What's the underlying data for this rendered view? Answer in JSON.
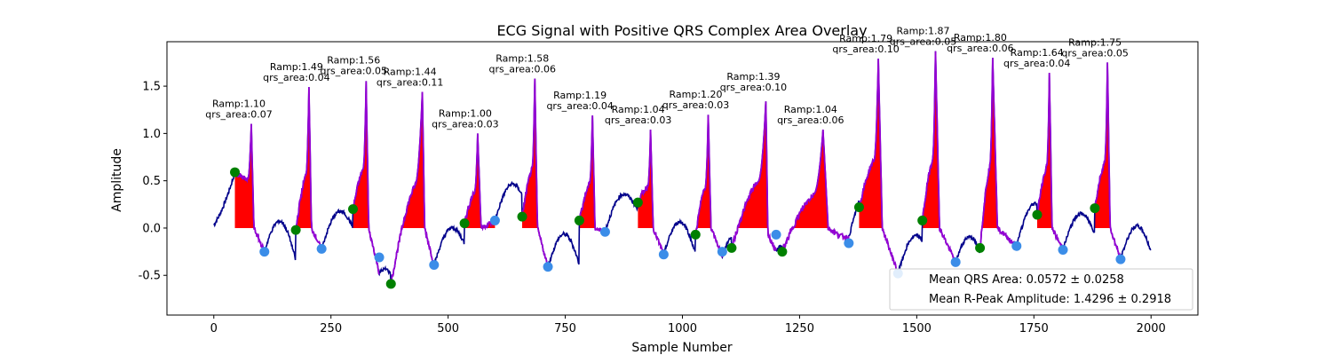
{
  "chart_data": {
    "type": "line",
    "title": "ECG Signal with Positive QRS Complex Area Overlay",
    "xlabel": "Sample Number",
    "ylabel": "Amplitude",
    "xlim": [
      -100,
      2100
    ],
    "ylim": [
      -0.92,
      1.97
    ],
    "xticks": [
      0,
      250,
      500,
      750,
      1000,
      1250,
      1500,
      1750,
      2000
    ],
    "yticks": [
      -0.5,
      0.0,
      0.5,
      1.0,
      1.5
    ],
    "grid": false,
    "colors": {
      "signal": "#00008b",
      "qrs_segment": "#9400d3",
      "qrs_fill": "#ff0000",
      "onset_marker": "#008000",
      "offset_marker": "#3b8de8"
    },
    "beats": [
      {
        "r_x": 80,
        "r_amp": 1.1,
        "qrs_area": "0.07",
        "onset": [
          45,
          0.59
        ],
        "offset": [
          108,
          -0.25
        ],
        "ramp_label": "Ramp:1.10",
        "area_label": "qrs_area:0.07"
      },
      {
        "r_x": 203,
        "r_amp": 1.49,
        "qrs_area": "0.04",
        "onset": [
          175,
          -0.02
        ],
        "offset": [
          230,
          -0.22
        ],
        "ramp_label": "Ramp:1.49",
        "area_label": "qrs_area:0.04"
      },
      {
        "r_x": 325,
        "r_amp": 1.56,
        "qrs_area": "0.05",
        "onset": [
          297,
          0.2
        ],
        "offset": [
          353,
          -0.31
        ],
        "ramp_label": "Ramp:1.56",
        "area_label": "qrs_area:0.05"
      },
      {
        "r_x": 445,
        "r_amp": 1.44,
        "qrs_area": "0.11",
        "onset": [
          378,
          -0.59
        ],
        "offset": [
          470,
          -0.39
        ],
        "ramp_label": "Ramp:1.44",
        "area_label": "qrs_area:0.11"
      },
      {
        "r_x": 563,
        "r_amp": 1.0,
        "qrs_area": "0.03",
        "onset": [
          535,
          0.05
        ],
        "offset": [
          600,
          0.08
        ],
        "ramp_label": "Ramp:1.00",
        "area_label": "qrs_area:0.03"
      },
      {
        "r_x": 685,
        "r_amp": 1.58,
        "qrs_area": "0.06",
        "onset": [
          658,
          0.12
        ],
        "offset": [
          713,
          -0.41
        ],
        "ramp_label": "Ramp:1.58",
        "area_label": "qrs_area:0.06"
      },
      {
        "r_x": 808,
        "r_amp": 1.19,
        "qrs_area": "0.04",
        "onset": [
          780,
          0.08
        ],
        "offset": [
          835,
          -0.04
        ],
        "ramp_label": "Ramp:1.19",
        "area_label": "qrs_area:0.04"
      },
      {
        "r_x": 932,
        "r_amp": 1.04,
        "qrs_area": "0.03",
        "onset": [
          905,
          0.27
        ],
        "offset": [
          960,
          -0.28
        ],
        "ramp_label": "Ramp:1.04",
        "area_label": "qrs_area:0.03"
      },
      {
        "r_x": 1055,
        "r_amp": 1.2,
        "qrs_area": "0.03",
        "onset": [
          1028,
          -0.07
        ],
        "offset": [
          1085,
          -0.25
        ],
        "ramp_label": "Ramp:1.20",
        "area_label": "qrs_area:0.03"
      },
      {
        "r_x": 1178,
        "r_amp": 1.39,
        "qrs_area": "0.10",
        "onset": [
          1105,
          -0.21
        ],
        "offset": [
          1200,
          -0.07
        ],
        "ramp_label": "Ramp:1.39",
        "area_label": "qrs_area:0.10"
      },
      {
        "r_x": 1300,
        "r_amp": 1.04,
        "qrs_area": "0.06",
        "onset": [
          1213,
          -0.25
        ],
        "offset": [
          1355,
          -0.16
        ],
        "ramp_label": "Ramp:1.04",
        "area_label": "qrs_area:0.06"
      },
      {
        "r_x": 1418,
        "r_amp": 1.79,
        "qrs_area": "0.10",
        "onset": [
          1377,
          0.22
        ],
        "offset": [
          1460,
          -0.48
        ],
        "ramp_label": "Ramp:1.79",
        "area_label": "qrs_area:0.10"
      },
      {
        "r_x": 1540,
        "r_amp": 1.87,
        "qrs_area": "0.05",
        "onset": [
          1512,
          0.08
        ],
        "offset": [
          1583,
          -0.36
        ],
        "ramp_label": "Ramp:1.87",
        "area_label": "qrs_area:0.05"
      },
      {
        "r_x": 1662,
        "r_amp": 1.8,
        "qrs_area": "0.06",
        "onset": [
          1635,
          -0.21
        ],
        "offset": [
          1713,
          -0.19
        ],
        "ramp_label": "Ramp:1.80",
        "area_label": "qrs_area:0.06"
      },
      {
        "r_x": 1783,
        "r_amp": 1.64,
        "qrs_area": "0.04",
        "onset": [
          1757,
          0.14
        ],
        "offset": [
          1812,
          -0.23
        ],
        "ramp_label": "Ramp:1.64",
        "area_label": "qrs_area:0.04"
      },
      {
        "r_x": 1907,
        "r_amp": 1.75,
        "qrs_area": "0.05",
        "onset": [
          1880,
          0.21
        ],
        "offset": [
          1935,
          -0.33
        ],
        "ramp_label": "Ramp:1.75",
        "area_label": "qrs_area:0.05"
      }
    ],
    "legend": {
      "position": "lower right",
      "entries": [
        "Mean QRS Area: 0.0572 ± 0.0258",
        "Mean R-Peak Amplitude: 1.4296 ± 0.2918"
      ]
    }
  }
}
